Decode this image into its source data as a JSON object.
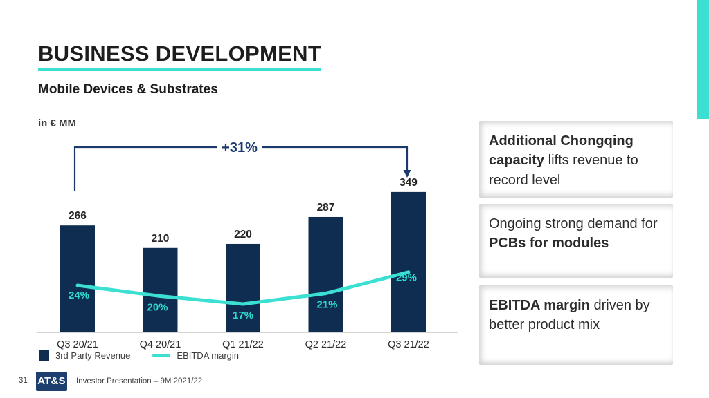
{
  "slide": {
    "title": "BUSINESS DEVELOPMENT",
    "subtitle": "Mobile Devices & Substrates",
    "unit_label": "in € MM",
    "accent_color": "#3CE0D3",
    "navy_color": "#0F2D50"
  },
  "chart_data": {
    "type": "bar",
    "categories": [
      "Q3 20/21",
      "Q4 20/21",
      "Q1 21/22",
      "Q2 21/22",
      "Q3 21/22"
    ],
    "series": [
      {
        "name": "3rd Party Revenue",
        "type": "bar",
        "unit": "€ MM",
        "values": [
          266,
          210,
          220,
          287,
          349
        ],
        "color": "#0F2D50"
      },
      {
        "name": "EBITDA margin",
        "type": "line",
        "unit": "%",
        "values": [
          24,
          20,
          17,
          21,
          29
        ],
        "color": "#3CE0D3"
      }
    ],
    "bar_value_labels": [
      "266",
      "210",
      "220",
      "287",
      "349"
    ],
    "line_value_labels": [
      "24%",
      "20%",
      "17%",
      "21%",
      "29%"
    ],
    "annotation": {
      "label": "+31%",
      "from": "Q3 20/21",
      "to": "Q3 21/22",
      "color": "#1B3A6B"
    },
    "title": "",
    "xlabel": "",
    "ylabel": "in € MM",
    "ylim": [
      0,
      380
    ],
    "grid": false,
    "legend_position": "bottom-left"
  },
  "legend": {
    "items": [
      {
        "label": "3rd Party Revenue",
        "swatch": "square",
        "color": "#0F2D50"
      },
      {
        "label": "EBITDA margin",
        "swatch": "line",
        "color": "#3CE0D3"
      }
    ]
  },
  "callouts": [
    {
      "segments": [
        {
          "text": "Additional Chongqing capacity",
          "bold": true
        },
        {
          "text": " lifts revenue to record level",
          "bold": false
        }
      ]
    },
    {
      "segments": [
        {
          "text": "Ongoing strong demand for ",
          "bold": false
        },
        {
          "text": "PCBs for modules",
          "bold": true
        }
      ]
    },
    {
      "segments": [
        {
          "text": "EBITDA margin",
          "bold": true
        },
        {
          "text": " driven by better product mix",
          "bold": false
        }
      ]
    }
  ],
  "footer": {
    "page_number": "31",
    "logo_text": "AT&S",
    "logo_color": "#1C3F6E",
    "presentation_label": "Investor Presentation – 9M 2021/22"
  }
}
